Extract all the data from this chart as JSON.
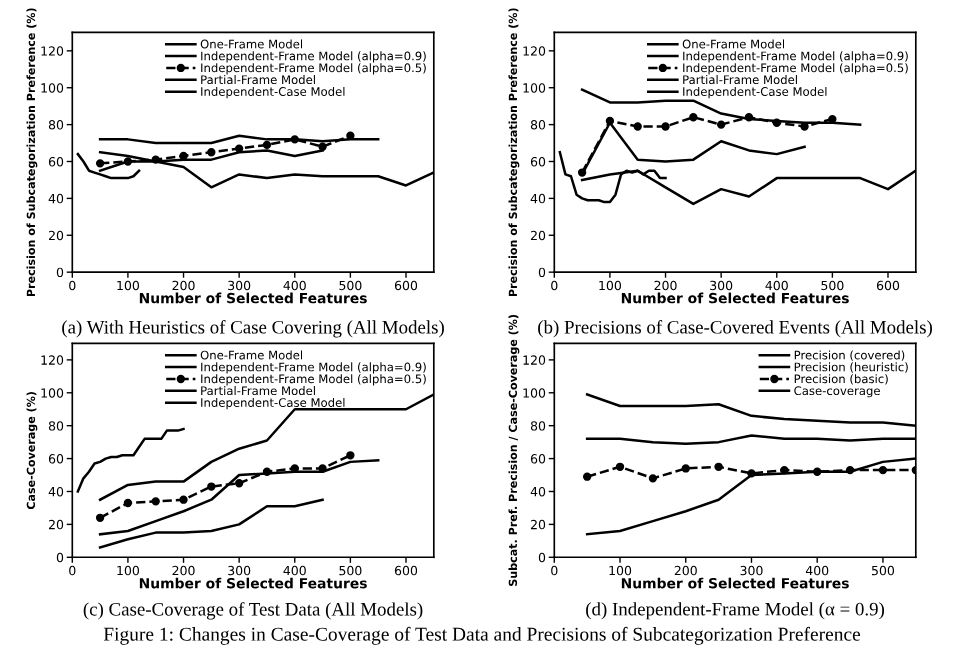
{
  "chart_data": [
    {
      "type": "line",
      "title": "(a) With Heuristics of Case Covering (All Models)",
      "xlabel": "Number of Selected Features",
      "ylabel": "Precision of Subcategorization Preference (%)",
      "xlim": [
        0,
        650
      ],
      "ylim": [
        0,
        130
      ],
      "xticks": [
        0,
        100,
        200,
        300,
        400,
        500,
        600
      ],
      "yticks": [
        0,
        20,
        40,
        60,
        80,
        100,
        120
      ],
      "legend": "top right",
      "annotations": [
        "Figure 1: Changes in Case-Coverage of Test Data and Precisions of Subcategorization Preference"
      ],
      "series": [
        {
          "name": "One-Frame Model",
          "color": "#000000",
          "x": [
            50,
            100,
            150,
            200,
            250,
            300,
            350,
            400,
            450,
            500,
            550,
            600,
            650
          ],
          "values": [
            55,
            60,
            60,
            57,
            46,
            53,
            51,
            53,
            52,
            52,
            52,
            47,
            54
          ]
        },
        {
          "name": "Independent-Frame Model (alpha=0.9)",
          "color": "#000000",
          "x": [
            50,
            100,
            150,
            200,
            250,
            300,
            350,
            400,
            450,
            500,
            550
          ],
          "values": [
            72,
            72,
            70,
            70,
            70,
            74,
            72,
            72,
            71,
            72,
            72
          ]
        },
        {
          "name": "Independent-Frame Model (alpha=0.5)",
          "color": "#000000",
          "line_style": "dashed",
          "marker": "circle",
          "x": [
            50,
            100,
            150,
            200,
            250,
            300,
            350,
            400,
            450,
            500
          ],
          "values": [
            59,
            60,
            61,
            63,
            65,
            67,
            69,
            72,
            68,
            74
          ]
        },
        {
          "name": "Partial-Frame Model",
          "color": "#000000",
          "x": [
            50,
            100,
            150,
            200,
            250,
            300,
            350,
            400,
            450
          ],
          "values": [
            65,
            63,
            60,
            61,
            61,
            65,
            66,
            63,
            66
          ]
        },
        {
          "name": "Independent-Case Model",
          "color": "#000000",
          "x": [
            10,
            20,
            30,
            40,
            50,
            60,
            70,
            80,
            90,
            100,
            110,
            120
          ],
          "values": [
            64,
            60,
            55,
            54,
            53,
            52,
            51,
            51,
            51,
            51,
            52,
            55
          ]
        }
      ]
    },
    {
      "type": "line",
      "title": "(b) Precisions of Case-Covered Events (All Models)",
      "xlabel": "Number of Selected Features",
      "ylabel": "Precision of Subcategorization Preference (%)",
      "xlim": [
        0,
        650
      ],
      "ylim": [
        0,
        130
      ],
      "xticks": [
        0,
        100,
        200,
        300,
        400,
        500,
        600
      ],
      "yticks": [
        0,
        20,
        40,
        60,
        80,
        100,
        120
      ],
      "legend": "top right",
      "series": [
        {
          "name": "One-Frame Model",
          "color": "#000000",
          "x": [
            50,
            100,
            150,
            200,
            250,
            300,
            350,
            400,
            450,
            500,
            550,
            600,
            650
          ],
          "values": [
            50,
            53,
            55,
            46,
            37,
            45,
            41,
            51,
            51,
            51,
            51,
            45,
            55
          ]
        },
        {
          "name": "Independent-Frame Model (alpha=0.9)",
          "color": "#000000",
          "x": [
            50,
            100,
            150,
            200,
            250,
            300,
            350,
            400,
            450,
            500,
            550
          ],
          "values": [
            99,
            92,
            92,
            93,
            93,
            86,
            83,
            82,
            81,
            81,
            80
          ]
        },
        {
          "name": "Independent-Frame Model (alpha=0.5)",
          "color": "#000000",
          "line_style": "dashed",
          "marker": "circle",
          "x": [
            50,
            100,
            150,
            200,
            250,
            300,
            350,
            400,
            450,
            500
          ],
          "values": [
            54,
            82,
            79,
            79,
            84,
            80,
            84,
            81,
            79,
            83
          ]
        },
        {
          "name": "Partial-Frame Model",
          "color": "#000000",
          "x": [
            50,
            100,
            150,
            200,
            250,
            300,
            350,
            400,
            450
          ],
          "values": [
            53,
            81,
            61,
            60,
            61,
            71,
            66,
            64,
            68
          ]
        },
        {
          "name": "Independent-Case Model",
          "color": "#000000",
          "x": [
            10,
            20,
            30,
            40,
            50,
            60,
            70,
            80,
            90,
            100,
            110,
            120,
            130,
            140,
            150,
            160,
            170,
            180,
            190,
            200
          ],
          "values": [
            65,
            53,
            52,
            42,
            40,
            39,
            39,
            39,
            38,
            38,
            42,
            53,
            55,
            54,
            55,
            53,
            55,
            55,
            51,
            51
          ]
        }
      ]
    },
    {
      "type": "line",
      "title": "(c) Case-Coverage of Test Data (All Models)",
      "xlabel": "Number of Selected Features",
      "ylabel": "Case-Coverage (%)",
      "xlim": [
        0,
        650
      ],
      "ylim": [
        0,
        130
      ],
      "xticks": [
        0,
        100,
        200,
        300,
        400,
        500,
        600
      ],
      "yticks": [
        0,
        20,
        40,
        60,
        80,
        100,
        120
      ],
      "legend": "top right",
      "series": [
        {
          "name": "One-Frame Model",
          "color": "#000000",
          "x": [
            50,
            100,
            150,
            200,
            250,
            300,
            350,
            400,
            450,
            500,
            550,
            600,
            650
          ],
          "values": [
            35,
            44,
            46,
            46,
            58,
            66,
            71,
            90,
            90,
            90,
            90,
            90,
            99
          ]
        },
        {
          "name": "Independent-Frame Model (alpha=0.9)",
          "color": "#000000",
          "x": [
            50,
            100,
            150,
            200,
            250,
            300,
            350,
            400,
            450,
            500,
            550
          ],
          "values": [
            14,
            16,
            22,
            28,
            35,
            50,
            51,
            52,
            52,
            58,
            59
          ]
        },
        {
          "name": "Independent-Frame Model (alpha=0.5)",
          "color": "#000000",
          "line_style": "dashed",
          "marker": "circle",
          "x": [
            50,
            100,
            150,
            200,
            250,
            300,
            350,
            400,
            450,
            500
          ],
          "values": [
            24,
            33,
            34,
            35,
            43,
            45,
            52,
            54,
            54,
            62
          ]
        },
        {
          "name": "Partial-Frame Model",
          "color": "#000000",
          "x": [
            50,
            100,
            150,
            200,
            250,
            300,
            350,
            400,
            450
          ],
          "values": [
            6,
            11,
            15,
            15,
            16,
            20,
            31,
            31,
            35
          ]
        },
        {
          "name": "Independent-Case Model",
          "color": "#000000",
          "x": [
            10,
            20,
            30,
            40,
            50,
            60,
            70,
            80,
            90,
            100,
            110,
            120,
            130,
            140,
            150,
            160,
            170,
            180,
            190,
            200
          ],
          "values": [
            40,
            48,
            52,
            57,
            58,
            60,
            61,
            61,
            62,
            62,
            62,
            67,
            72,
            72,
            72,
            72,
            77,
            77,
            77,
            78
          ]
        }
      ]
    },
    {
      "type": "line",
      "title": "(d) Independent-Frame Model (α = 0.9)",
      "xlabel": "Number of Selected Features",
      "ylabel": "Subcat. Pref. Precision / Case-Coverage (%)",
      "xlim": [
        0,
        550
      ],
      "ylim": [
        0,
        130
      ],
      "xticks": [
        0,
        100,
        200,
        300,
        400,
        500
      ],
      "yticks": [
        0,
        20,
        40,
        60,
        80,
        100,
        120
      ],
      "legend": "top right",
      "series": [
        {
          "name": "Precision (covered)",
          "color": "#000000",
          "x": [
            50,
            100,
            150,
            200,
            250,
            300,
            350,
            400,
            450,
            500,
            550
          ],
          "values": [
            99,
            92,
            92,
            92,
            93,
            86,
            84,
            83,
            82,
            82,
            80
          ]
        },
        {
          "name": "Precision (heuristic)",
          "color": "#000000",
          "x": [
            50,
            100,
            150,
            200,
            250,
            300,
            350,
            400,
            450,
            500,
            550
          ],
          "values": [
            72,
            72,
            70,
            69,
            70,
            74,
            72,
            72,
            71,
            72,
            72
          ]
        },
        {
          "name": "Precision (basic)",
          "color": "#000000",
          "line_style": "dashed",
          "marker": "circle",
          "x": [
            50,
            100,
            150,
            200,
            250,
            300,
            350,
            400,
            450,
            500,
            550
          ],
          "values": [
            49,
            55,
            48,
            54,
            55,
            51,
            53,
            52,
            53,
            53,
            53
          ]
        },
        {
          "name": "Case-coverage",
          "color": "#000000",
          "x": [
            50,
            100,
            150,
            200,
            250,
            300,
            350,
            400,
            450,
            500,
            550
          ],
          "values": [
            14,
            16,
            22,
            28,
            35,
            50,
            51,
            52,
            52,
            58,
            60
          ]
        }
      ]
    }
  ]
}
